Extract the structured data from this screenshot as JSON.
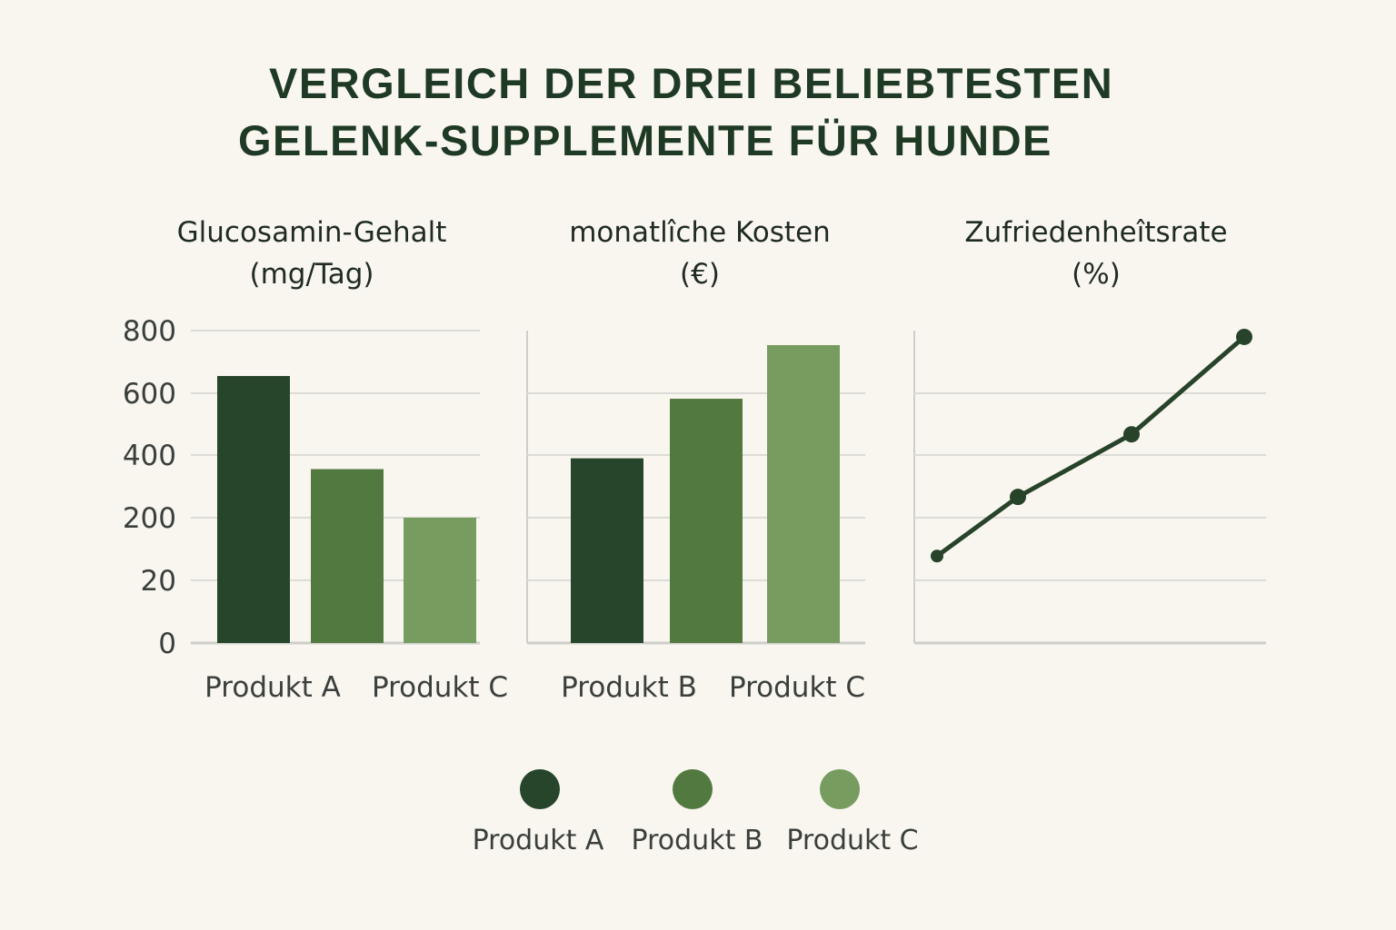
{
  "title": {
    "line1": "VERGLEICH DER DREI BELIEBTESTEN",
    "line2": "GELENK-SUPPLEMENTE FÜR HUNDE"
  },
  "colors": {
    "product_a": "#26452b",
    "product_b": "#527a40",
    "product_c": "#769c60",
    "line": "#27432a",
    "grid": "#dcdcd6",
    "axis": "#cfcfca"
  },
  "legend": [
    {
      "name": "Produkt A",
      "color": "#26452b"
    },
    {
      "name": "Produkt B",
      "color": "#527a40"
    },
    {
      "name": "Produkt C",
      "color": "#769c60"
    }
  ],
  "chart_data": [
    {
      "type": "bar",
      "title_line1": "Glucosamin-Gehalt",
      "title_line2": "(mg/Tag)",
      "ytick_labels": [
        "0",
        "20",
        "200",
        "400",
        "600",
        "800"
      ],
      "categories": [
        "Produkt A",
        "Produkt B",
        "Produkt C"
      ],
      "printed_category_labels": [
        "Produkt A",
        "Produkt C"
      ],
      "values": [
        655,
        355,
        200
      ],
      "grid": true
    },
    {
      "type": "bar",
      "title_line1": "monatlîche Kosten",
      "title_line2": "(€)",
      "ytick_labels": [],
      "categories": [
        "Produkt A",
        "Produkt B",
        "Produkt C"
      ],
      "printed_category_labels": [
        "Produkt B",
        "Produkt C"
      ],
      "values": [
        465,
        615,
        750
      ],
      "grid": true
    },
    {
      "type": "line",
      "title_line1": "Zufriedenheîtsrate",
      "title_line2": "(%)",
      "x": [
        1,
        2,
        3,
        4
      ],
      "values": [
        25,
        42,
        60,
        88
      ],
      "ylim": [
        0,
        100
      ],
      "grid": true
    }
  ]
}
